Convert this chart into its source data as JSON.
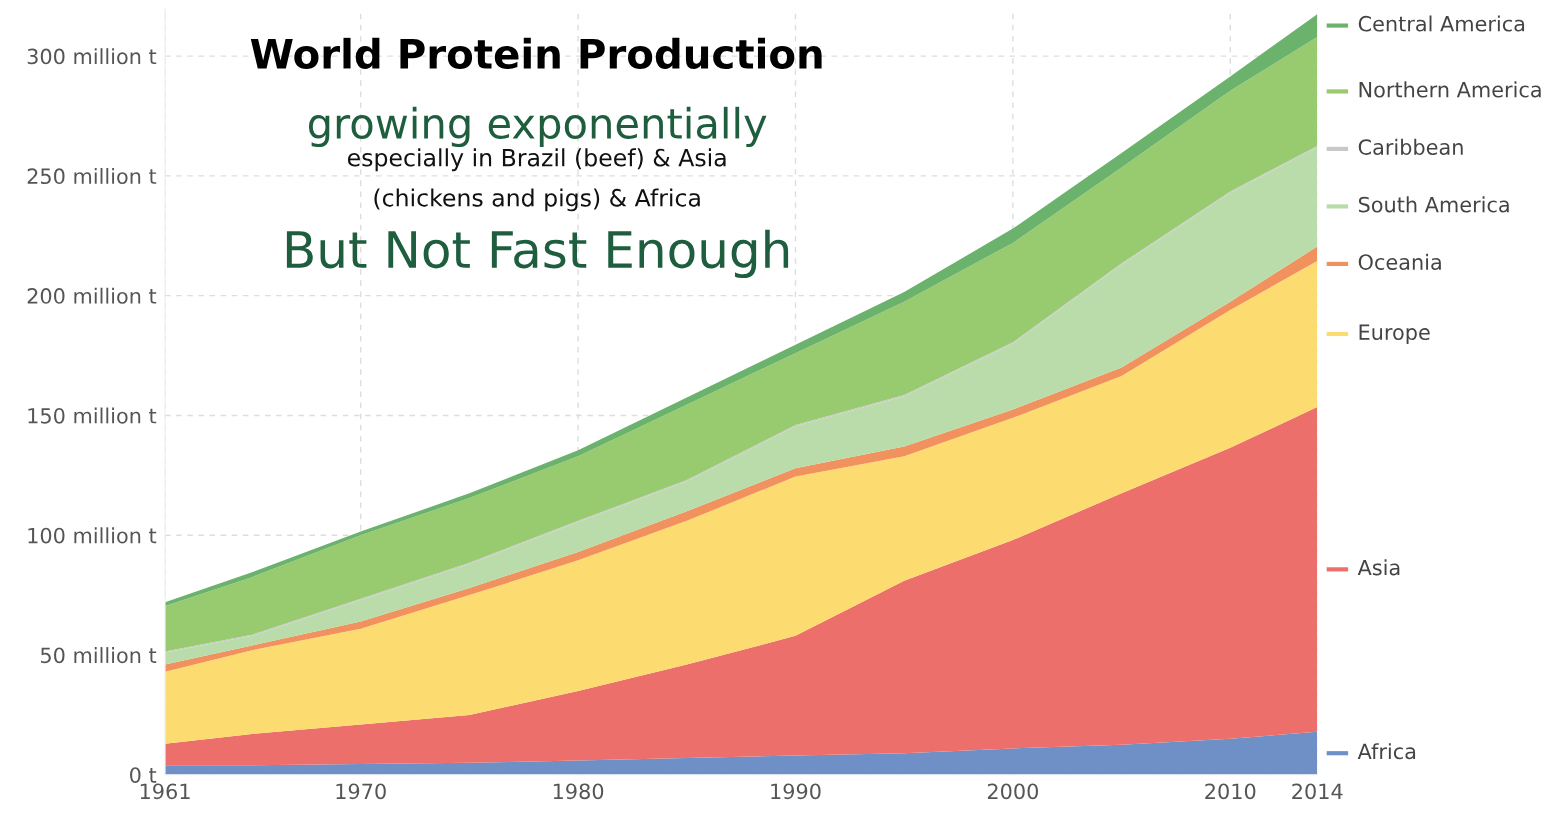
{
  "chart_data": {
    "type": "area",
    "stacked": true,
    "title": "World Protein Production",
    "subtitle": "growing exponentially",
    "annotations": [
      "especially in Brazil (beef) & Asia",
      "(chickens and pigs) & Africa",
      "But Not Fast Enough"
    ],
    "x": [
      1961,
      1965,
      1970,
      1975,
      1980,
      1985,
      1990,
      1995,
      2000,
      2005,
      2010,
      2014
    ],
    "series": [
      {
        "name": "Africa",
        "color": "#6f8fc7",
        "values": [
          4,
          4,
          4.5,
          5,
          6,
          7,
          8,
          9,
          11,
          12.5,
          15,
          18
        ]
      },
      {
        "name": "Asia",
        "color": "#ec6f6b",
        "values": [
          9,
          13,
          16.5,
          20,
          29,
          39,
          50,
          72,
          87,
          105,
          121.5,
          135.5
        ]
      },
      {
        "name": "Europe",
        "color": "#fcdc70",
        "values": [
          30,
          35,
          40,
          50,
          54.5,
          60,
          66.5,
          52,
          51,
          49,
          57.5,
          61
        ]
      },
      {
        "name": "Oceania",
        "color": "#f0915e",
        "values": [
          3,
          2,
          3,
          3,
          3.5,
          4,
          3.5,
          4,
          3.5,
          3.5,
          3.5,
          6
        ]
      },
      {
        "name": "South America",
        "color": "#b9dcaa",
        "values": [
          5,
          4,
          9,
          10,
          12.5,
          12.5,
          17.5,
          21,
          27.5,
          43,
          45.5,
          41.5
        ]
      },
      {
        "name": "Caribbean",
        "color": "#c8c8c8",
        "values": [
          0.5,
          0.5,
          0.5,
          0.5,
          0.5,
          0.5,
          0.5,
          0.5,
          0.5,
          0.5,
          0.5,
          0.5
        ]
      },
      {
        "name": "Northern America",
        "color": "#98cb6f",
        "values": [
          19,
          24,
          26.5,
          27,
          27,
          31.5,
          30,
          39,
          41.5,
          40,
          42,
          45.5
        ]
      },
      {
        "name": "Central America",
        "color": "#6bb26c",
        "values": [
          1.5,
          2,
          1.5,
          2,
          2.5,
          3,
          3.5,
          4,
          6,
          6,
          6,
          9.5
        ]
      }
    ],
    "xlim": [
      1961,
      2014
    ],
    "xticks": [
      1961,
      1970,
      1980,
      1990,
      2000,
      2010,
      2014
    ],
    "ylim": [
      0,
      320
    ],
    "yticks": [
      {
        "value": 0,
        "label": "0 t"
      },
      {
        "value": 50,
        "label": "50 million t"
      },
      {
        "value": 100,
        "label": "100 million t"
      },
      {
        "value": 150,
        "label": "150 million t"
      },
      {
        "value": 200,
        "label": "200 million t"
      },
      {
        "value": 250,
        "label": "250 million t"
      },
      {
        "value": 300,
        "label": "300 million t"
      }
    ],
    "grid": true,
    "legend": "right"
  }
}
